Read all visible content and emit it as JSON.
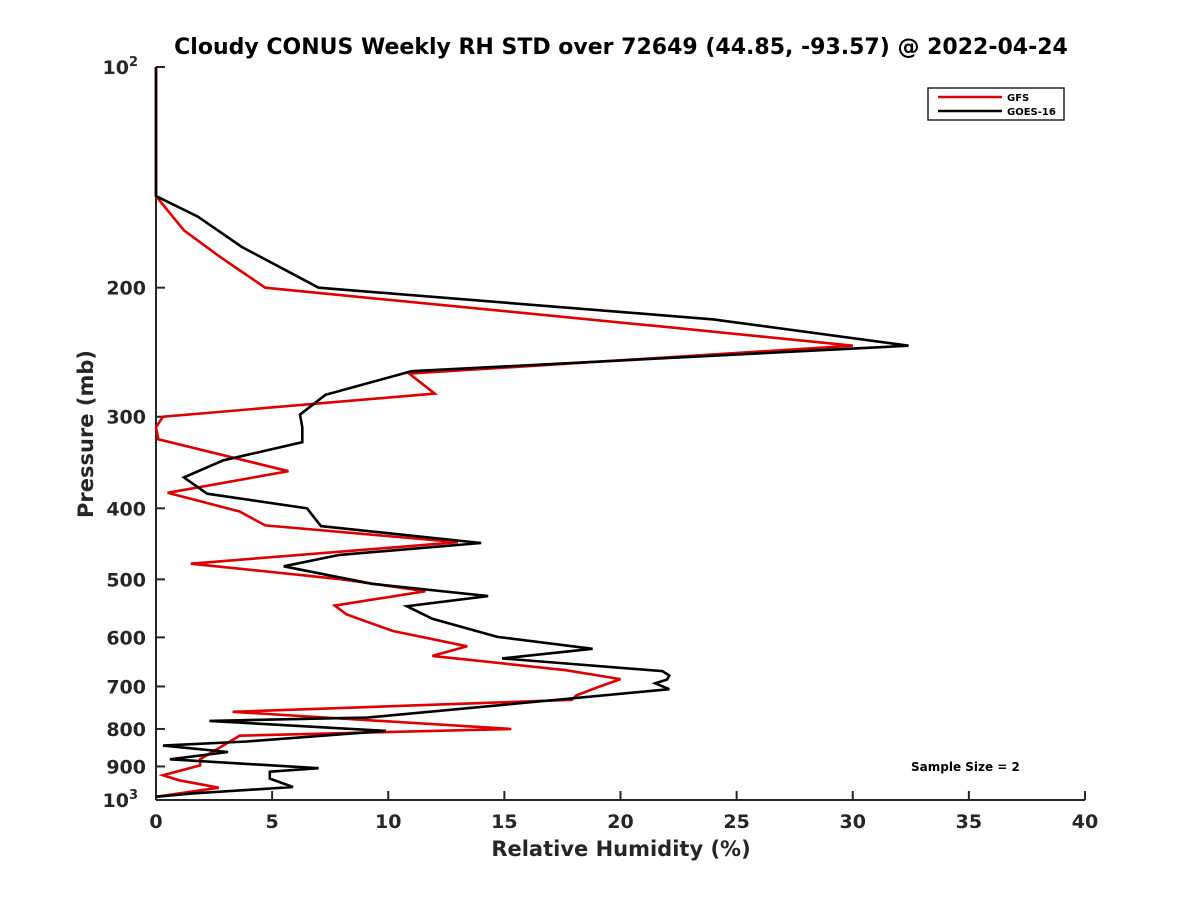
{
  "chart_data": {
    "type": "line",
    "title": "Cloudy CONUS Weekly RH STD over 72649 (44.85, -93.57) @ 2022-04-24",
    "xlabel": "Relative Humidity (%)",
    "ylabel": "Pressure (mb)",
    "xlim": [
      0,
      40
    ],
    "ylim": [
      100,
      1000
    ],
    "y_scale": "log",
    "y_reversed": true,
    "x_ticks": [
      0,
      5,
      10,
      15,
      20,
      25,
      30,
      35,
      40
    ],
    "y_ticks": [
      {
        "value": 100,
        "label": "10",
        "sup": "2"
      },
      {
        "value": 200,
        "label": "200"
      },
      {
        "value": 300,
        "label": "300"
      },
      {
        "value": 400,
        "label": "400"
      },
      {
        "value": 500,
        "label": "500"
      },
      {
        "value": 600,
        "label": "600"
      },
      {
        "value": 700,
        "label": "700"
      },
      {
        "value": 800,
        "label": "800"
      },
      {
        "value": 900,
        "label": "900"
      },
      {
        "value": 1000,
        "label": "10",
        "sup": "3"
      }
    ],
    "grid": false,
    "legend_position": "top-right",
    "annotation": "Sample Size = 2",
    "series": [
      {
        "name": "GFS",
        "color": "#e00000",
        "points": [
          [
            0,
            100
          ],
          [
            0,
            150
          ],
          [
            1.2,
            167
          ],
          [
            2.8,
            182
          ],
          [
            4.7,
            200
          ],
          [
            21.8,
            226
          ],
          [
            30.0,
            240
          ],
          [
            10.9,
            262
          ],
          [
            12.0,
            279
          ],
          [
            0.3,
            300
          ],
          [
            0,
            310
          ],
          [
            0.1,
            322
          ],
          [
            5.7,
            356
          ],
          [
            0.5,
            381
          ],
          [
            3.6,
            404
          ],
          [
            4.7,
            422
          ],
          [
            13.0,
            445
          ],
          [
            1.5,
            476
          ],
          [
            8.0,
            500
          ],
          [
            11.6,
            519
          ],
          [
            7.7,
            543
          ],
          [
            8.2,
            558
          ],
          [
            10.2,
            588
          ],
          [
            13.4,
            617
          ],
          [
            11.9,
            636
          ],
          [
            17.6,
            665
          ],
          [
            20.0,
            684
          ],
          [
            19.0,
            702
          ],
          [
            18.1,
            720
          ],
          [
            17.9,
            730
          ],
          [
            3.3,
            758
          ],
          [
            15.3,
            800
          ],
          [
            3.6,
            817
          ],
          [
            1.9,
            880
          ],
          [
            1.9,
            897
          ],
          [
            0.3,
            925
          ],
          [
            1.0,
            940
          ],
          [
            2.7,
            962
          ],
          [
            0,
            990
          ]
        ]
      },
      {
        "name": "GOES-16",
        "color": "#000000",
        "points": [
          [
            0,
            100
          ],
          [
            0,
            150
          ],
          [
            1.8,
            160
          ],
          [
            3.7,
            176
          ],
          [
            7.0,
            200
          ],
          [
            24.0,
            221
          ],
          [
            32.4,
            240
          ],
          [
            11.0,
            260
          ],
          [
            7.3,
            280
          ],
          [
            6.2,
            298
          ],
          [
            6.3,
            310
          ],
          [
            6.3,
            325
          ],
          [
            2.9,
            344
          ],
          [
            1.2,
            363
          ],
          [
            2.2,
            382
          ],
          [
            6.5,
            400
          ],
          [
            7.1,
            423
          ],
          [
            14.0,
            446
          ],
          [
            7.9,
            463
          ],
          [
            5.5,
            480
          ],
          [
            9.3,
            507
          ],
          [
            14.3,
            527
          ],
          [
            10.8,
            544
          ],
          [
            11.9,
            566
          ],
          [
            14.7,
            599
          ],
          [
            18.8,
            622
          ],
          [
            14.9,
            641
          ],
          [
            21.8,
            667
          ],
          [
            22.1,
            676
          ],
          [
            22.0,
            685
          ],
          [
            21.5,
            693
          ],
          [
            22.1,
            706
          ],
          [
            9.1,
            772
          ],
          [
            2.3,
            780
          ],
          [
            9.9,
            805
          ],
          [
            3.9,
            832
          ],
          [
            0.3,
            843
          ],
          [
            3.1,
            860
          ],
          [
            0.6,
            880
          ],
          [
            7.0,
            905
          ],
          [
            4.9,
            915
          ],
          [
            4.9,
            935
          ],
          [
            5.9,
            960
          ],
          [
            1.5,
            980
          ],
          [
            0,
            990
          ]
        ]
      }
    ]
  }
}
